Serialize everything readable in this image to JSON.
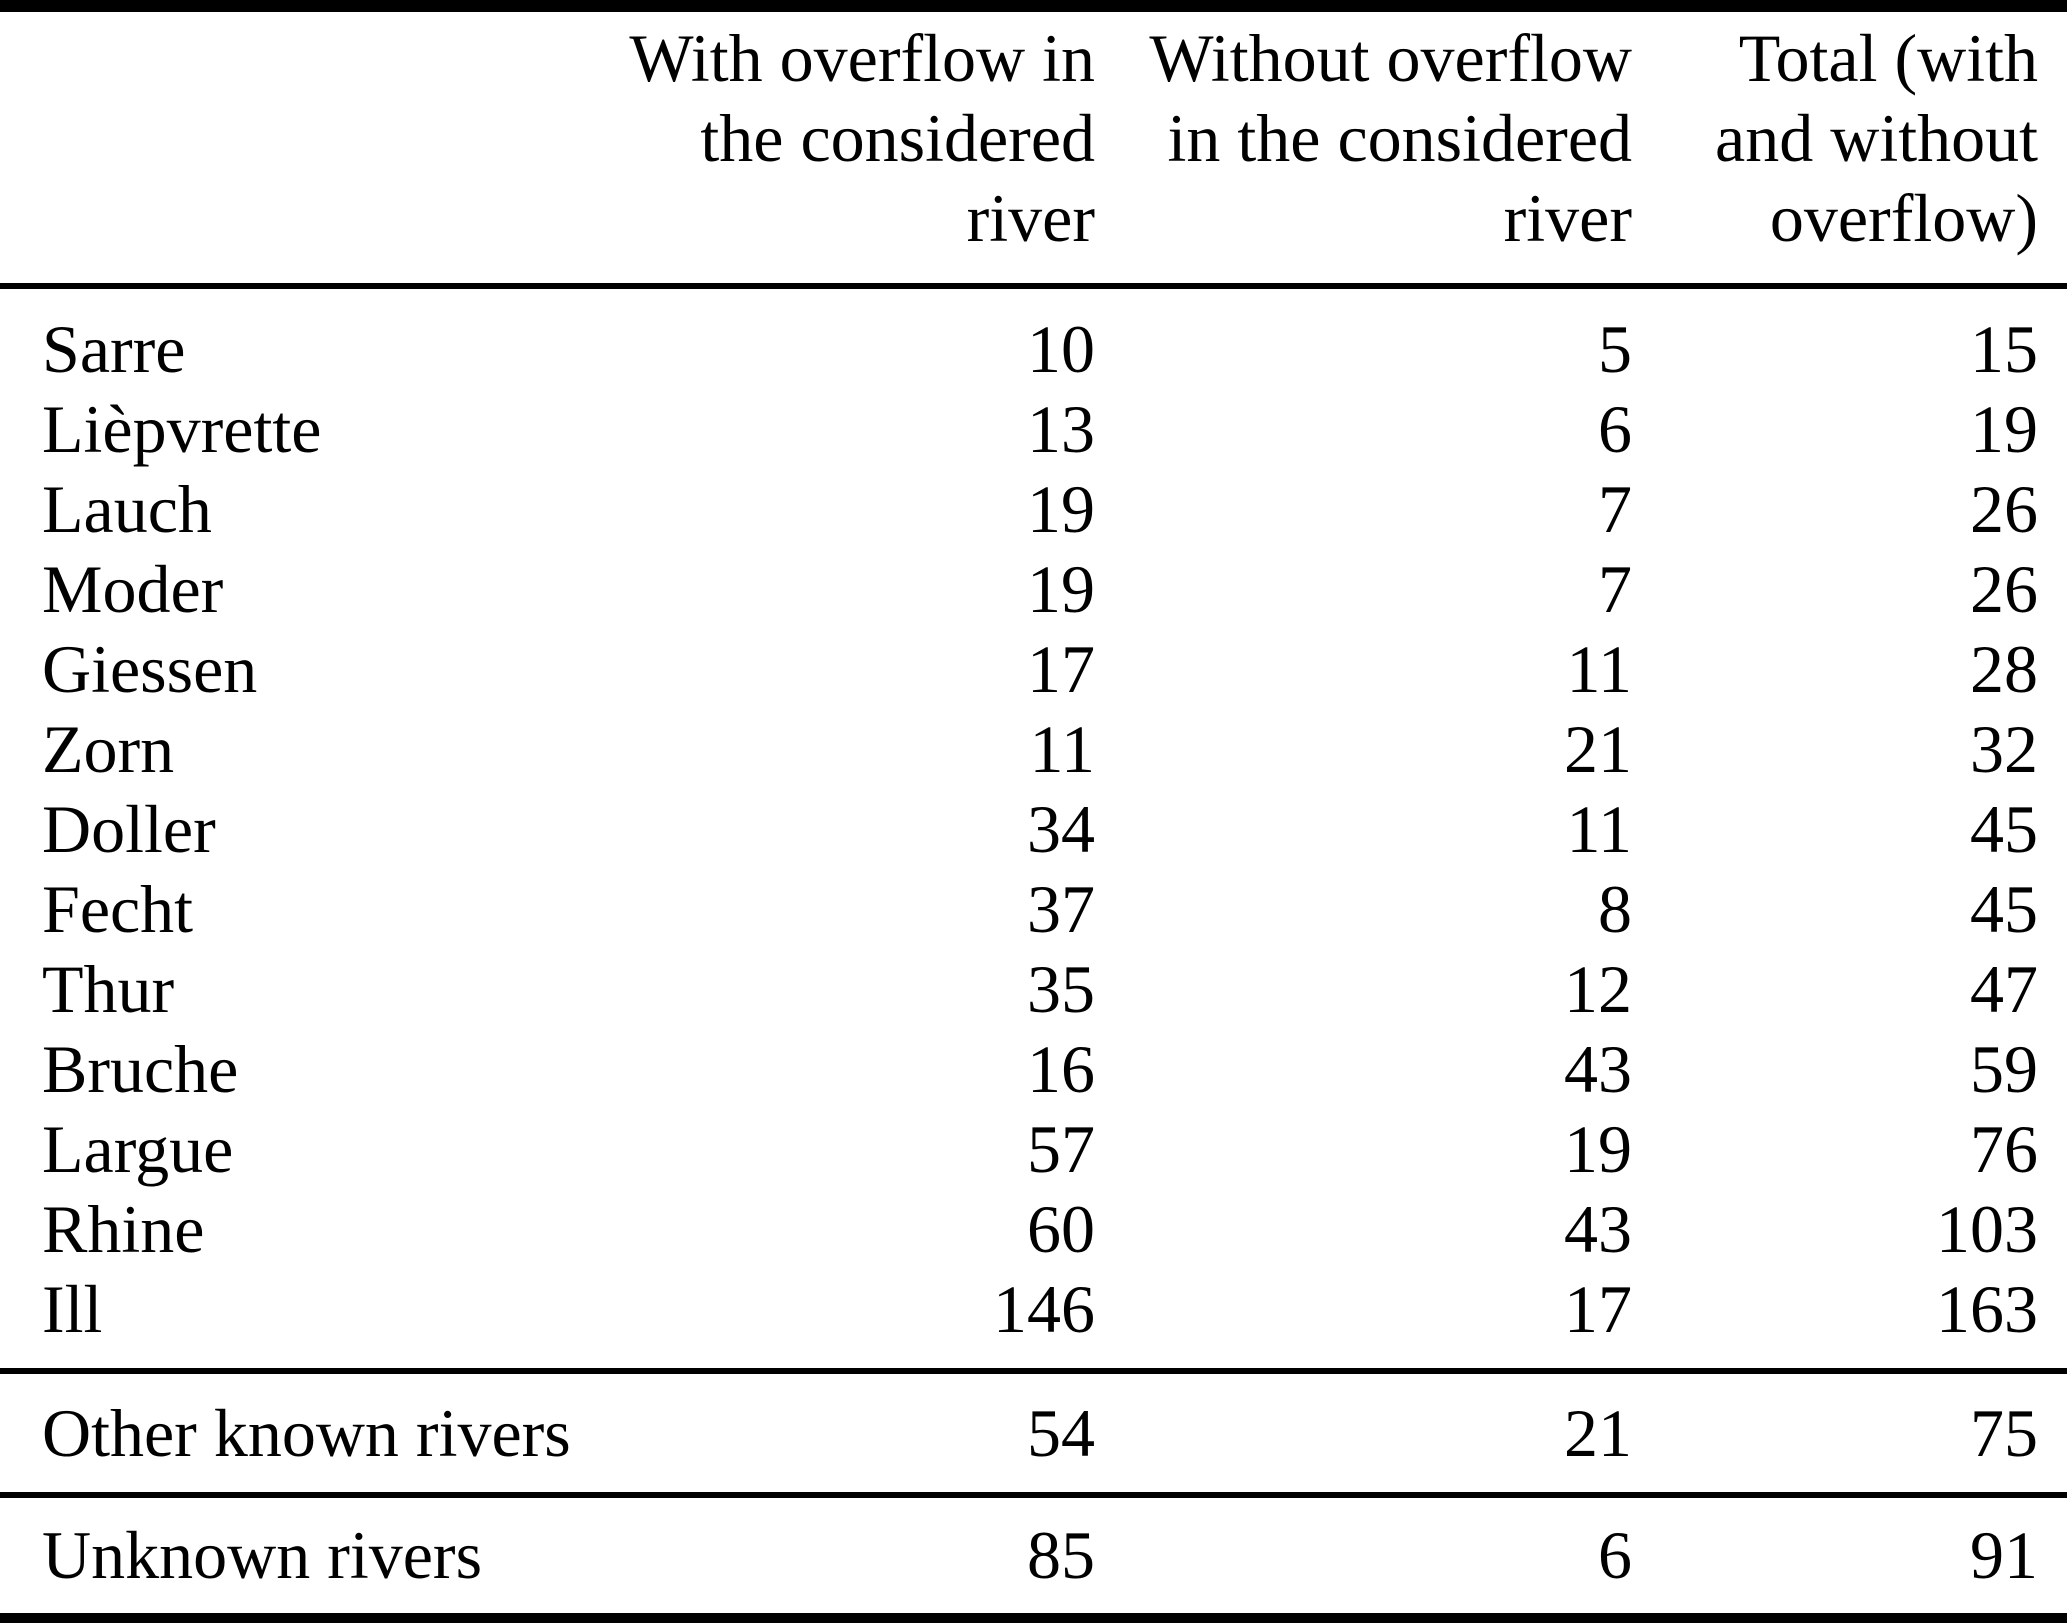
{
  "table": {
    "headers": [
      {
        "lines": [
          "",
          "",
          ""
        ]
      },
      {
        "lines": [
          "With overflow in",
          "the considered",
          "river"
        ]
      },
      {
        "lines": [
          "Without overflow",
          "in the considered",
          "river"
        ]
      },
      {
        "lines": [
          "Total (with",
          "and without",
          "overflow)"
        ]
      }
    ],
    "rows": [
      {
        "name": "Sarre",
        "with_overflow": "10",
        "without_overflow": "5",
        "total": "15"
      },
      {
        "name": "Lièpvrette",
        "with_overflow": "13",
        "without_overflow": "6",
        "total": "19"
      },
      {
        "name": "Lauch",
        "with_overflow": "19",
        "without_overflow": "7",
        "total": "26"
      },
      {
        "name": "Moder",
        "with_overflow": "19",
        "without_overflow": "7",
        "total": "26"
      },
      {
        "name": "Giessen",
        "with_overflow": "17",
        "without_overflow": "11",
        "total": "28"
      },
      {
        "name": "Zorn",
        "with_overflow": "11",
        "without_overflow": "21",
        "total": "32"
      },
      {
        "name": "Doller",
        "with_overflow": "34",
        "without_overflow": "11",
        "total": "45"
      },
      {
        "name": "Fecht",
        "with_overflow": "37",
        "without_overflow": "8",
        "total": "45"
      },
      {
        "name": "Thur",
        "with_overflow": "35",
        "without_overflow": "12",
        "total": "47"
      },
      {
        "name": "Bruche",
        "with_overflow": "16",
        "without_overflow": "43",
        "total": "59"
      },
      {
        "name": "Largue",
        "with_overflow": "57",
        "without_overflow": "19",
        "total": "76"
      },
      {
        "name": "Rhine",
        "with_overflow": "60",
        "without_overflow": "43",
        "total": "103"
      },
      {
        "name": "Ill",
        "with_overflow": "146",
        "without_overflow": "17",
        "total": "163"
      }
    ],
    "other_known": {
      "name": "Other known rivers",
      "with_overflow": "54",
      "without_overflow": "21",
      "total": "75"
    },
    "unknown": {
      "name": "Unknown rivers",
      "with_overflow": "85",
      "without_overflow": "6",
      "total": "91"
    }
  }
}
